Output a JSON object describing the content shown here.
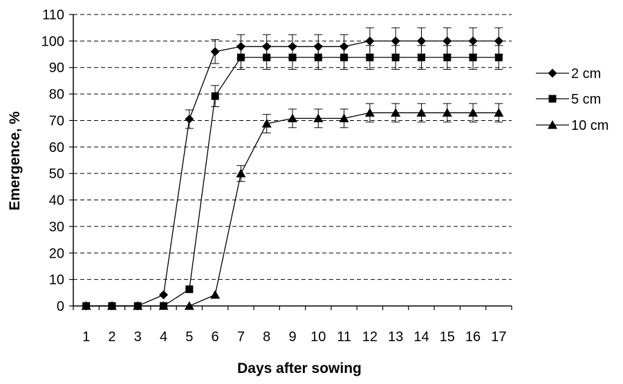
{
  "chart_data": {
    "type": "line",
    "title": "",
    "xlabel": "Days after sowing",
    "ylabel": "Emergence, %",
    "x": [
      1,
      2,
      3,
      4,
      5,
      6,
      7,
      8,
      9,
      10,
      11,
      12,
      13,
      14,
      15,
      16,
      17
    ],
    "ylim": [
      0,
      110
    ],
    "yticks": [
      0,
      10,
      20,
      30,
      40,
      50,
      60,
      70,
      80,
      90,
      100,
      110
    ],
    "grid": "horizontal dashed",
    "legend_position": "right",
    "series": [
      {
        "name": "2 cm",
        "marker": "diamond",
        "values": [
          0,
          0,
          0,
          4.2,
          70.5,
          96,
          97.9,
          97.9,
          97.9,
          97.9,
          97.9,
          100,
          100,
          100,
          100,
          100,
          100
        ],
        "error": [
          0,
          0,
          0,
          0,
          3.5,
          4.5,
          4.5,
          4.5,
          4.5,
          4.5,
          4.5,
          5,
          5,
          5,
          5,
          5,
          5
        ]
      },
      {
        "name": "5 cm",
        "marker": "square",
        "values": [
          0,
          0,
          0,
          0,
          6.3,
          79.2,
          93.8,
          93.8,
          93.8,
          93.8,
          93.8,
          93.8,
          93.8,
          93.8,
          93.8,
          93.8,
          93.8
        ],
        "error": [
          0,
          0,
          0,
          0,
          0,
          4,
          4.5,
          4.5,
          4.5,
          4.5,
          4.5,
          4.5,
          4.5,
          4.5,
          4.5,
          4.5,
          4.5
        ]
      },
      {
        "name": "10 cm",
        "marker": "triangle",
        "values": [
          0,
          0,
          0,
          0,
          0,
          4.2,
          50,
          68.8,
          70.8,
          70.8,
          70.8,
          72.9,
          72.9,
          72.9,
          72.9,
          72.9,
          72.9
        ],
        "error": [
          0,
          0,
          0,
          0,
          0,
          0,
          3,
          3.5,
          3.5,
          3.5,
          3.5,
          3.5,
          3.5,
          3.5,
          3.5,
          3.5,
          3.5
        ]
      }
    ],
    "colors": {
      "line": "#000000",
      "grid": "#000000",
      "background": "#ffffff"
    }
  }
}
